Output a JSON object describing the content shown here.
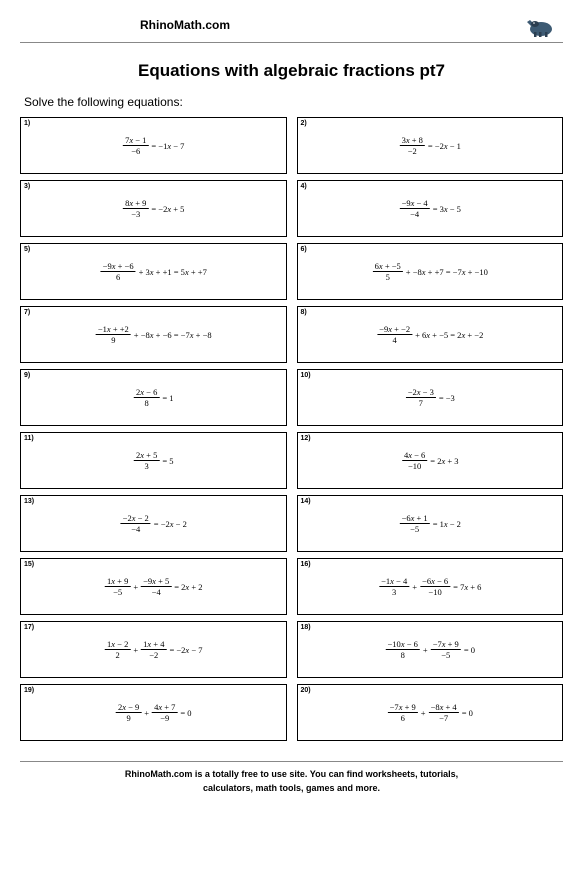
{
  "header": {
    "site_name": "RhinoMath.com"
  },
  "title": "Equations with algebraic fractions pt7",
  "instruction": "Solve the following equations:",
  "problems": [
    {
      "n": "1)",
      "fracs": [
        {
          "top": "7x − 1",
          "bot": "−6"
        }
      ],
      "rest": " = −1x − 7"
    },
    {
      "n": "2)",
      "fracs": [
        {
          "top": "3x + 8",
          "bot": "−2"
        }
      ],
      "rest": " = −2x − 1"
    },
    {
      "n": "3)",
      "fracs": [
        {
          "top": "8x + 9",
          "bot": "−3"
        }
      ],
      "rest": " = −2x + 5"
    },
    {
      "n": "4)",
      "fracs": [
        {
          "top": "−9x − 4",
          "bot": "−4"
        }
      ],
      "rest": " = 3x − 5"
    },
    {
      "n": "5)",
      "fracs": [
        {
          "top": "−9x + −6",
          "bot": "6"
        }
      ],
      "rest": " + 3x + +1 = 5x + +7"
    },
    {
      "n": "6)",
      "fracs": [
        {
          "top": "6x + −5",
          "bot": "5"
        }
      ],
      "rest": " + −8x + +7 = −7x + −10"
    },
    {
      "n": "7)",
      "fracs": [
        {
          "top": "−1x + +2",
          "bot": "9"
        }
      ],
      "rest": " + −8x + −6 = −7x + −8"
    },
    {
      "n": "8)",
      "fracs": [
        {
          "top": "−9x + −2",
          "bot": "4"
        }
      ],
      "rest": " + 6x + −5 = 2x + −2"
    },
    {
      "n": "9)",
      "fracs": [
        {
          "top": "2x − 6",
          "bot": "8"
        }
      ],
      "rest": " = 1"
    },
    {
      "n": "10)",
      "fracs": [
        {
          "top": "−2x − 3",
          "bot": "7"
        }
      ],
      "rest": " = −3"
    },
    {
      "n": "11)",
      "fracs": [
        {
          "top": "2x + 5",
          "bot": "3"
        }
      ],
      "rest": " = 5"
    },
    {
      "n": "12)",
      "fracs": [
        {
          "top": "4x − 6",
          "bot": "−10"
        }
      ],
      "rest": " = 2x + 3"
    },
    {
      "n": "13)",
      "fracs": [
        {
          "top": "−2x − 2",
          "bot": "−4"
        }
      ],
      "rest": " = −2x − 2"
    },
    {
      "n": "14)",
      "fracs": [
        {
          "top": "−6x + 1",
          "bot": "−5"
        }
      ],
      "rest": " = 1x − 2"
    },
    {
      "n": "15)",
      "fracs": [
        {
          "top": "1x + 9",
          "bot": "−5"
        },
        {
          "top": "−9x + 5",
          "bot": "−4"
        }
      ],
      "mid": " + ",
      "rest": " = 2x + 2"
    },
    {
      "n": "16)",
      "fracs": [
        {
          "top": "−1x − 4",
          "bot": "3"
        },
        {
          "top": "−6x − 6",
          "bot": "−10"
        }
      ],
      "mid": " + ",
      "rest": " = 7x + 6"
    },
    {
      "n": "17)",
      "fracs": [
        {
          "top": "1x − 2",
          "bot": "2"
        },
        {
          "top": "1x + 4",
          "bot": "−2"
        }
      ],
      "mid": " + ",
      "rest": " = −2x − 7"
    },
    {
      "n": "18)",
      "fracs": [
        {
          "top": "−10x − 6",
          "bot": "8"
        },
        {
          "top": "−7x + 9",
          "bot": "−5"
        }
      ],
      "mid": " + ",
      "rest": " = 0"
    },
    {
      "n": "19)",
      "fracs": [
        {
          "top": "2x − 9",
          "bot": "9"
        },
        {
          "top": "4x + 7",
          "bot": "−9"
        }
      ],
      "mid": " + ",
      "rest": " = 0"
    },
    {
      "n": "20)",
      "fracs": [
        {
          "top": "−7x + 9",
          "bot": "6"
        },
        {
          "top": "−8x + 4",
          "bot": "−7"
        }
      ],
      "mid": " + ",
      "rest": " = 0"
    }
  ],
  "footer": {
    "line1": "RhinoMath.com is a totally free to use site. You can find worksheets, tutorials,",
    "line2": "calculators, math tools, games and more."
  },
  "colors": {
    "text": "#000000",
    "border": "#000000",
    "rule": "#888888",
    "bg": "#ffffff",
    "logo_body": "#3d5a73",
    "logo_dark": "#2b3e50"
  }
}
